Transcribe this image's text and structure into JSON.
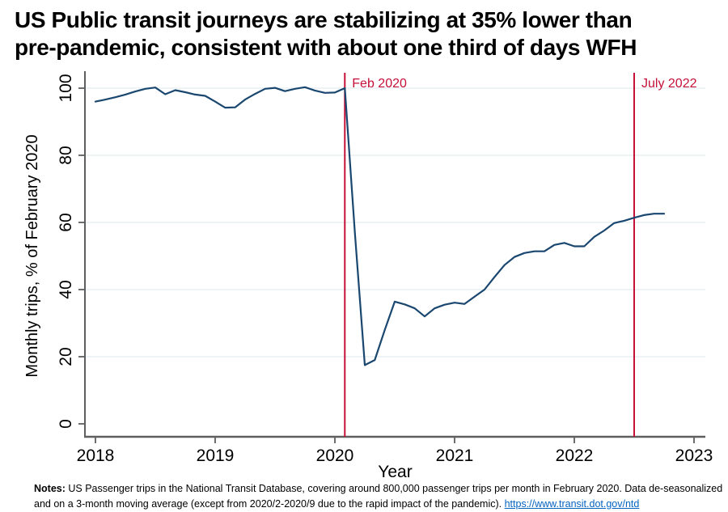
{
  "title": {
    "line1": "US Public transit journeys are stabilizing at 35% lower than",
    "line2": "pre-pandemic, consistent with about one third of days WFH"
  },
  "chart_data": {
    "type": "line",
    "title": "US Public transit journeys are stabilizing at 35% lower than pre-pandemic, consistent with about one third of days WFH",
    "xlabel": "Year",
    "ylabel": "Monthly trips, % of February 2020",
    "x_ticks": [
      2018,
      2019,
      2020,
      2021,
      2022,
      2023
    ],
    "y_ticks": [
      0,
      20,
      40,
      60,
      80,
      100
    ],
    "xlim": [
      2017.9,
      2023.1
    ],
    "ylim": [
      0,
      104
    ],
    "grid": "horizontal",
    "legend": "none",
    "line_color": "#1a476f",
    "grid_color": "#e9f1f2",
    "axis_color": "#5f5f5f",
    "tick_label_color": "#000000",
    "reference_lines": [
      {
        "x": 2020.083,
        "label": "Feb 2020",
        "color": "#c51038"
      },
      {
        "x": 2022.5,
        "label": "July 2022",
        "color": "#c51038"
      }
    ],
    "series": [
      {
        "name": "Monthly trips, % of February 2020",
        "x": [
          2018.0,
          2018.083,
          2018.167,
          2018.25,
          2018.333,
          2018.417,
          2018.5,
          2018.583,
          2018.667,
          2018.75,
          2018.833,
          2018.917,
          2019.0,
          2019.083,
          2019.167,
          2019.25,
          2019.333,
          2019.417,
          2019.5,
          2019.583,
          2019.667,
          2019.75,
          2019.833,
          2019.917,
          2020.0,
          2020.083,
          2020.167,
          2020.25,
          2020.333,
          2020.417,
          2020.5,
          2020.583,
          2020.667,
          2020.75,
          2020.833,
          2020.917,
          2021.0,
          2021.083,
          2021.167,
          2021.25,
          2021.333,
          2021.417,
          2021.5,
          2021.583,
          2021.667,
          2021.75,
          2021.833,
          2021.917,
          2022.0,
          2022.083,
          2022.167,
          2022.25,
          2022.333,
          2022.417,
          2022.5,
          2022.583,
          2022.667,
          2022.75
        ],
        "values": [
          96.0,
          96.6,
          97.3,
          98.1,
          99.0,
          99.8,
          100.2,
          98.2,
          99.4,
          98.8,
          98.1,
          97.7,
          96.0,
          94.2,
          94.3,
          96.6,
          98.3,
          99.8,
          100.1,
          99.1,
          99.8,
          100.3,
          99.3,
          98.6,
          98.7,
          100.0,
          57.0,
          17.5,
          19.0,
          28.0,
          36.4,
          35.6,
          34.4,
          32.0,
          34.4,
          35.5,
          36.1,
          35.7,
          37.9,
          40.0,
          43.7,
          47.3,
          49.7,
          50.9,
          51.4,
          51.4,
          53.3,
          53.9,
          52.9,
          52.9,
          55.7,
          57.6,
          59.8,
          60.5,
          61.4,
          62.2,
          62.6,
          62.6
        ]
      }
    ]
  },
  "notes": {
    "label": "Notes:",
    "line1": " US Passenger trips in the National Transit Database, covering around 800,000 passenger trips per month in February 2020. Data de-seasonalized",
    "line2": "and on a 3-month moving average (except from 2020/2-2020/9 due to the rapid impact of the pandemic). ",
    "link": "https://www.transit.dot.gov/ntd"
  }
}
